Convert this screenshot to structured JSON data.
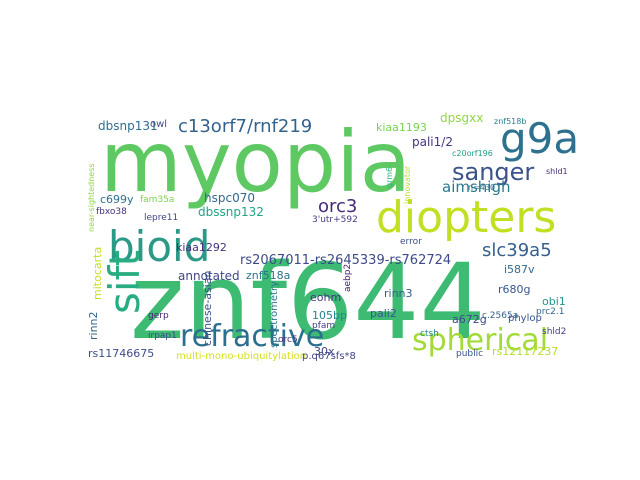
{
  "word_cloud": {
    "words": [
      {
        "text": "znf644",
        "color": "#3dbb73"
      },
      {
        "text": "myopia",
        "color": "#5ec962"
      },
      {
        "text": "diopters",
        "color": "#c2df23"
      },
      {
        "text": "bioid",
        "color": "#2a9a87"
      },
      {
        "text": "refractive",
        "color": "#2b6f8f"
      },
      {
        "text": "spherical",
        "color": "#a2da37"
      },
      {
        "text": "sift",
        "color": "#27ad81"
      },
      {
        "text": "g9a",
        "color": "#2d718e"
      },
      {
        "text": "sanger",
        "color": "#3b528b"
      },
      {
        "text": "c13orf7/rnf219",
        "color": "#33628d"
      },
      {
        "text": "slc39a5",
        "color": "#35608d"
      },
      {
        "text": "rs2067011-rs2645339-rs762724",
        "color": "#3e4a89"
      },
      {
        "text": "orc3",
        "color": "#482878"
      },
      {
        "text": "aimshigh",
        "color": "#2a788e"
      },
      {
        "text": "dpsgxx",
        "color": "#8fd744"
      },
      {
        "text": "dbsnp131",
        "color": "#2e6e8e"
      },
      {
        "text": "kiaa1193",
        "color": "#7ad151"
      },
      {
        "text": "pali1/2",
        "color": "#46337e"
      },
      {
        "text": "hspc070",
        "color": "#31688e"
      },
      {
        "text": "dbssnp132",
        "color": "#20a386"
      },
      {
        "text": "annotated",
        "color": "#404688"
      },
      {
        "text": "kiaa1292",
        "color": "#46307e"
      },
      {
        "text": "znf518a",
        "color": "#2c728e"
      },
      {
        "text": "rs12117237",
        "color": "#b5de2b"
      },
      {
        "text": "rs11746675",
        "color": "#3e4c8a"
      },
      {
        "text": "r680g",
        "color": "#38588c"
      },
      {
        "text": "i587v",
        "color": "#2f6c8e"
      },
      {
        "text": "rinn3",
        "color": "#365c8d"
      },
      {
        "text": "eohm",
        "color": "#453781"
      },
      {
        "text": "a672g",
        "color": "#3f4889"
      },
      {
        "text": "105bp",
        "color": "#25848e"
      },
      {
        "text": "pali2",
        "color": "#38598c"
      },
      {
        "text": "obi1",
        "color": "#1f988b"
      },
      {
        "text": "c699y",
        "color": "#2d708e"
      },
      {
        "text": "mitocarta",
        "color": "#c5e021"
      },
      {
        "text": "rinn2",
        "color": "#30698e"
      },
      {
        "text": "chinese-asian",
        "color": "#3b518b"
      },
      {
        "text": "spectrometry",
        "color": "#2a778e"
      },
      {
        "text": "multi-mono-ubiquitylation",
        "color": "#d5e21a"
      },
      {
        "text": "p.q67sfs*8",
        "color": "#3f4788"
      },
      {
        "text": "30x",
        "color": "#414487"
      },
      {
        "text": "phylop",
        "color": "#3a548c"
      },
      {
        "text": "c.2565a",
        "color": "#34618d"
      },
      {
        "text": "orc5",
        "color": "#472d7b"
      },
      {
        "text": "public",
        "color": "#3b528b"
      },
      {
        "text": "shld2",
        "color": "#404387"
      },
      {
        "text": "prc2.1",
        "color": "#31678e"
      },
      {
        "text": "gerp",
        "color": "#482475"
      },
      {
        "text": "irpap1",
        "color": "#3e4989"
      },
      {
        "text": "lepre11",
        "color": "#414487"
      },
      {
        "text": "fbxo38",
        "color": "#46327e"
      },
      {
        "text": "fam35a",
        "color": "#7fd34e"
      },
      {
        "text": "near-sightedness",
        "color": "#8fd744"
      },
      {
        "text": "3'utr+592",
        "color": "#433e85"
      },
      {
        "text": "pfam",
        "color": "#433d84"
      },
      {
        "text": "error",
        "color": "#3c4f8a"
      },
      {
        "text": "ctsh",
        "color": "#24868e"
      },
      {
        "text": "aebp2",
        "color": "#482071"
      },
      {
        "text": "znf518b",
        "color": "#26818e"
      },
      {
        "text": "c20orf196",
        "color": "#1f9e89"
      },
      {
        "text": "shld1",
        "color": "#472f7d"
      },
      {
        "text": "n=430",
        "color": "#2e6f8e"
      },
      {
        "text": "grm6",
        "color": "#2fb47c"
      },
      {
        "text": "innovator",
        "color": "#b8de29"
      },
      {
        "text": "owl",
        "color": "#3e4a89"
      }
    ]
  }
}
